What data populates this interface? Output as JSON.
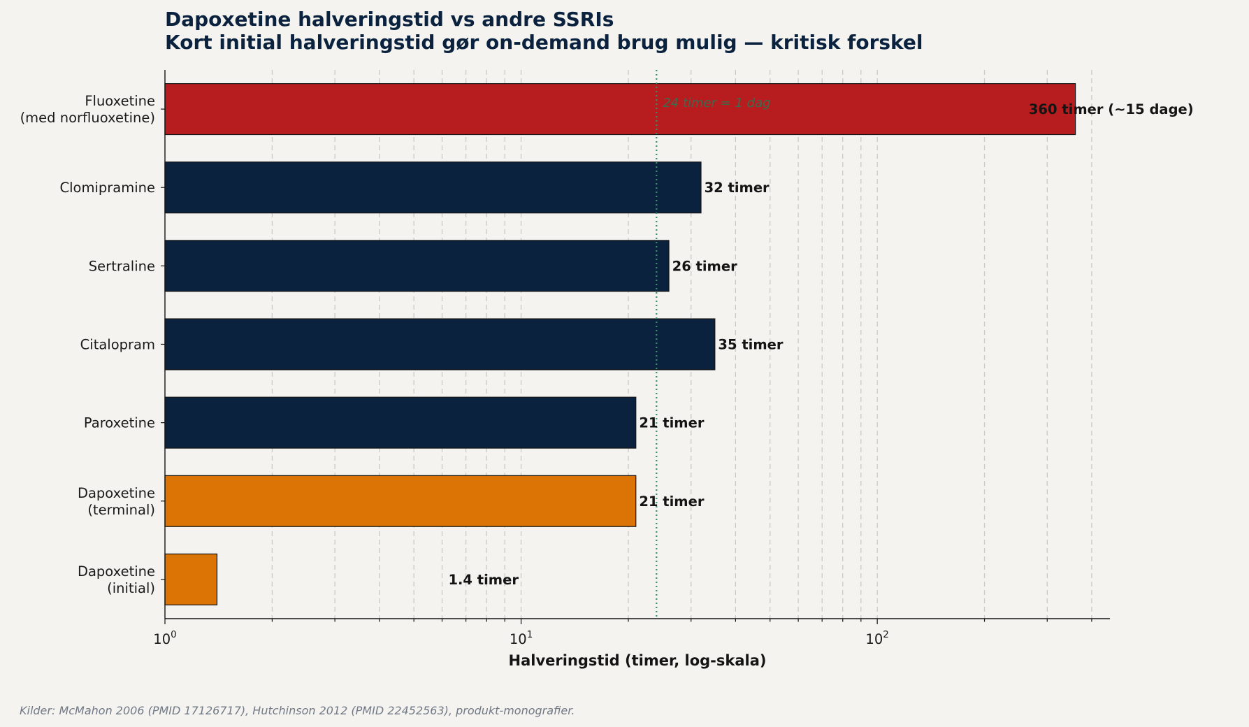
{
  "chart_data": {
    "type": "bar",
    "orientation": "horizontal",
    "title_lines": [
      "Dapoxetine halveringstid vs andre SSRIs",
      "Kort initial halveringstid gør on-demand brug mulig — kritisk forskel"
    ],
    "xlabel": "Halveringstid (timer, log-skala)",
    "ylabel": "",
    "x_scale": "log",
    "xlim": [
      1,
      450
    ],
    "x_ticks": [
      {
        "base": "10",
        "exp": "0"
      },
      {
        "base": "10",
        "exp": "1"
      },
      {
        "base": "10",
        "exp": "2"
      }
    ],
    "grid": "x-major-and-minor-dashed",
    "categories": [
      [
        "Fluoxetine",
        "(med norfluoxetine)"
      ],
      [
        "Clomipramine"
      ],
      [
        "Sertraline"
      ],
      [
        "Citalopram"
      ],
      [
        "Paroxetine"
      ],
      [
        "Dapoxetine",
        "(terminal)"
      ],
      [
        "Dapoxetine",
        "(initial)"
      ]
    ],
    "values": [
      360,
      32,
      26,
      35,
      21,
      21,
      1.4
    ],
    "value_labels": [
      "360 timer (~15 dage)",
      "32 timer",
      "26 timer",
      "35 timer",
      "21 timer",
      "21 timer",
      "1.4 timer"
    ],
    "bar_colors": [
      "#b71c1f",
      "#0b223f",
      "#0b223f",
      "#0b223f",
      "#0b223f",
      "#db7405",
      "#db7405"
    ],
    "reference_line": {
      "x": 24,
      "label": "24 timer = 1 dag",
      "color": "#3a8f6a"
    },
    "source_note": "Kilder: McMahon 2006 (PMID 17126717), Hutchinson 2012 (PMID 22452563), produkt-monografier."
  }
}
